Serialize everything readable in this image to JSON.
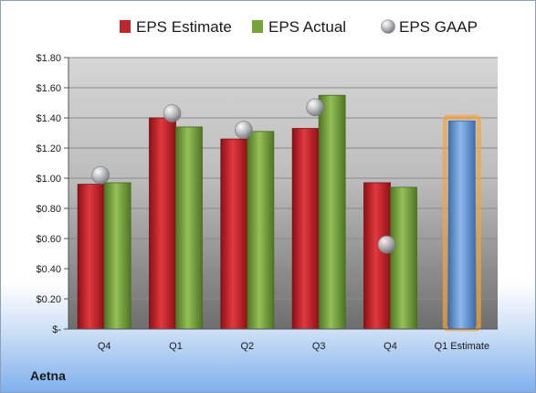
{
  "company": "Aetna",
  "chart_data": {
    "type": "bar",
    "title": "",
    "xlabel": "",
    "ylabel": "",
    "ylim": [
      0,
      1.8
    ],
    "y_ticks": [
      0,
      0.2,
      0.4,
      0.6,
      0.8,
      1.0,
      1.2,
      1.4,
      1.6,
      1.8
    ],
    "y_tick_labels": [
      "$-",
      "$0.20",
      "$0.40",
      "$0.60",
      "$0.80",
      "$1.00",
      "$1.20",
      "$1.40",
      "$1.60",
      "$1.80"
    ],
    "grid": true,
    "legend_position": "top",
    "categories": [
      "Q4",
      "Q1",
      "Q2",
      "Q3",
      "Q4",
      "Q1 Estimate"
    ],
    "series": [
      {
        "name": "EPS Estimate",
        "kind": "bar",
        "color": "#c0272d",
        "values": [
          0.96,
          1.4,
          1.26,
          1.33,
          0.97,
          null
        ]
      },
      {
        "name": "EPS Actual",
        "kind": "bar",
        "color": "#77a33b",
        "values": [
          0.97,
          1.34,
          1.31,
          1.55,
          0.94,
          null
        ]
      },
      {
        "name": "EPS GAAP",
        "kind": "marker",
        "color": "#b0b4b8",
        "values": [
          1.02,
          1.43,
          1.32,
          1.47,
          0.56,
          null
        ]
      }
    ],
    "estimate_bar": {
      "category": "Q1 Estimate",
      "value": 1.38,
      "color": "#6a9ad6",
      "glow": "#f5a23a"
    }
  }
}
